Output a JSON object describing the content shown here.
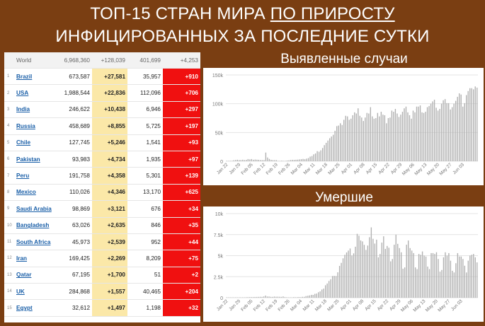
{
  "title": {
    "line1": "ТОП-15 СТРАН МИРА ",
    "line1_underlined": "ПО ПРИРОСТУ",
    "line2": "ИНФИЦИРОВАННЫХ ЗА ПОСЛЕДНИЕ СУТКИ"
  },
  "table": {
    "world": {
      "name": "World",
      "total_cases": "6,968,360",
      "new_cases": "+128,039",
      "total_deaths": "401,699",
      "new_deaths": "+4,253"
    },
    "rows": [
      {
        "n": "1",
        "country": "Brazil",
        "total_cases": "673,587",
        "new_cases": "+27,581",
        "total_deaths": "35,957",
        "new_deaths": "+910"
      },
      {
        "n": "2",
        "country": "USA",
        "total_cases": "1,988,544",
        "new_cases": "+22,836",
        "total_deaths": "112,096",
        "new_deaths": "+706"
      },
      {
        "n": "3",
        "country": "India",
        "total_cases": "246,622",
        "new_cases": "+10,438",
        "total_deaths": "6,946",
        "new_deaths": "+297"
      },
      {
        "n": "4",
        "country": "Russia",
        "total_cases": "458,689",
        "new_cases": "+8,855",
        "total_deaths": "5,725",
        "new_deaths": "+197"
      },
      {
        "n": "5",
        "country": "Chile",
        "total_cases": "127,745",
        "new_cases": "+5,246",
        "total_deaths": "1,541",
        "new_deaths": "+93"
      },
      {
        "n": "6",
        "country": "Pakistan",
        "total_cases": "93,983",
        "new_cases": "+4,734",
        "total_deaths": "1,935",
        "new_deaths": "+97"
      },
      {
        "n": "7",
        "country": "Peru",
        "total_cases": "191,758",
        "new_cases": "+4,358",
        "total_deaths": "5,301",
        "new_deaths": "+139"
      },
      {
        "n": "8",
        "country": "Mexico",
        "total_cases": "110,026",
        "new_cases": "+4,346",
        "total_deaths": "13,170",
        "new_deaths": "+625"
      },
      {
        "n": "9",
        "country": "Saudi Arabia",
        "total_cases": "98,869",
        "new_cases": "+3,121",
        "total_deaths": "676",
        "new_deaths": "+34"
      },
      {
        "n": "10",
        "country": "Bangladesh",
        "total_cases": "63,026",
        "new_cases": "+2,635",
        "total_deaths": "846",
        "new_deaths": "+35"
      },
      {
        "n": "11",
        "country": "South Africa",
        "total_cases": "45,973",
        "new_cases": "+2,539",
        "total_deaths": "952",
        "new_deaths": "+44"
      },
      {
        "n": "12",
        "country": "Iran",
        "total_cases": "169,425",
        "new_cases": "+2,269",
        "total_deaths": "8,209",
        "new_deaths": "+75"
      },
      {
        "n": "13",
        "country": "Qatar",
        "total_cases": "67,195",
        "new_cases": "+1,700",
        "total_deaths": "51",
        "new_deaths": "+2"
      },
      {
        "n": "14",
        "country": "UK",
        "total_cases": "284,868",
        "new_cases": "+1,557",
        "total_deaths": "40,465",
        "new_deaths": "+204"
      },
      {
        "n": "15",
        "country": "Egypt",
        "total_cases": "32,612",
        "new_cases": "+1,497",
        "total_deaths": "1,198",
        "new_deaths": "+32"
      }
    ]
  },
  "colors": {
    "background": "#7a3e12",
    "new_cases_cell": "#fbe8a8",
    "new_deaths_cell": "#f01010",
    "bar": "#b0b0b0"
  },
  "chart_data": [
    {
      "type": "bar",
      "title": "Выявленные случаи",
      "ylim": [
        0,
        150000
      ],
      "yticks": [
        0,
        50000,
        100000,
        150000
      ],
      "ytick_labels": [
        "0",
        "50k",
        "100k",
        "150k"
      ],
      "xtick_labels": [
        "Jan 22",
        "Jan 29",
        "Feb 05",
        "Feb 12",
        "Feb 19",
        "Feb 26",
        "Mar 04",
        "Mar 11",
        "Mar 18",
        "Mar 25",
        "Apr 01",
        "Apr 08",
        "Apr 15",
        "Apr 22",
        "Apr 29",
        "May 06",
        "May 13",
        "May 20",
        "May 27",
        "Jun 03"
      ],
      "x_start": "Jan 22",
      "grid": true,
      "values": [
        600,
        100,
        700,
        800,
        1700,
        2100,
        2600,
        2000,
        2100,
        2600,
        2000,
        2400,
        3800,
        3200,
        3800,
        2600,
        3000,
        2700,
        2500,
        2000,
        1900,
        2000,
        15100,
        6500,
        4000,
        2500,
        2000,
        1900,
        1800,
        600,
        600,
        1000,
        500,
        600,
        1200,
        1500,
        2100,
        2500,
        2300,
        2600,
        2800,
        3200,
        3600,
        4000,
        3500,
        4500,
        5500,
        8000,
        9000,
        12000,
        13500,
        17500,
        16500,
        19000,
        23000,
        28000,
        32000,
        36000,
        40000,
        43000,
        46000,
        53000,
        61000,
        62000,
        66000,
        63000,
        72000,
        79000,
        78000,
        72000,
        74000,
        80000,
        85000,
        83000,
        92000,
        79000,
        76000,
        70000,
        76000,
        84000,
        83000,
        94000,
        78000,
        74000,
        75000,
        84000,
        78000,
        86000,
        81000,
        80000,
        66000,
        75000,
        76000,
        88000,
        86000,
        91000,
        83000,
        77000,
        81000,
        86000,
        92000,
        95000,
        85000,
        80000,
        74000,
        88000,
        85000,
        95000,
        95000,
        97000,
        85000,
        84000,
        86000,
        94000,
        96000,
        100000,
        104000,
        107000,
        93000,
        88000,
        91000,
        100000,
        106000,
        108000,
        101000,
        101000,
        90000,
        94000,
        100000,
        105000,
        112000,
        118000,
        116000,
        95000,
        101000,
        115000,
        122000,
        127000,
        127000,
        125000,
        130000,
        128000
      ]
    },
    {
      "type": "bar",
      "title": "Умершие",
      "ylim": [
        0,
        10000
      ],
      "yticks": [
        0,
        2500,
        5000,
        7500,
        10000
      ],
      "ytick_labels": [
        "0",
        "2.5k",
        "5k",
        "7.5k",
        "10k"
      ],
      "xtick_labels": [
        "Jan 22",
        "Jan 29",
        "Feb 05",
        "Feb 12",
        "Feb 19",
        "Feb 26",
        "Mar 04",
        "Mar 11",
        "Mar 18",
        "Mar 25",
        "Apr 01",
        "Apr 08",
        "Apr 15",
        "Apr 22",
        "Apr 29",
        "May 06",
        "May 13",
        "May 20",
        "May 27",
        "Jun 03"
      ],
      "x_start": "Jan 22",
      "grid": true,
      "values": [
        0,
        1,
        8,
        16,
        14,
        26,
        26,
        38,
        43,
        46,
        45,
        57,
        64,
        66,
        73,
        73,
        86,
        89,
        97,
        108,
        97,
        146,
        254,
        143,
        142,
        106,
        98,
        139,
        115,
        118,
        109,
        97,
        150,
        71,
        52,
        29,
        44,
        37,
        68,
        55,
        64,
        80,
        64,
        103,
        103,
        197,
        231,
        272,
        338,
        335,
        457,
        492,
        652,
        754,
        976,
        1080,
        1480,
        1690,
        1990,
        2200,
        2580,
        2590,
        2570,
        3020,
        3780,
        4140,
        4680,
        5100,
        5380,
        5600,
        5850,
        5010,
        5270,
        6060,
        7590,
        7370,
        6810,
        6690,
        6280,
        5680,
        6200,
        7190,
        8360,
        7000,
        6430,
        6900,
        4800,
        5200,
        6550,
        7300,
        5800,
        6150,
        5940,
        4320,
        4600,
        6300,
        7500,
        6400,
        5900,
        5400,
        3450,
        3600,
        6300,
        6800,
        5900,
        5600,
        5300,
        3600,
        3400,
        5200,
        5100,
        5500,
        5000,
        4900,
        3700,
        3400,
        5300,
        5300,
        5200,
        5400,
        4600,
        3100,
        3300,
        4800,
        5400,
        5000,
        5300,
        4400,
        3200,
        3000,
        4100,
        5300,
        4900,
        4900,
        4600,
        3800,
        3000,
        4400,
        5000,
        5100,
        5200,
        4800,
        4200
      ]
    }
  ]
}
